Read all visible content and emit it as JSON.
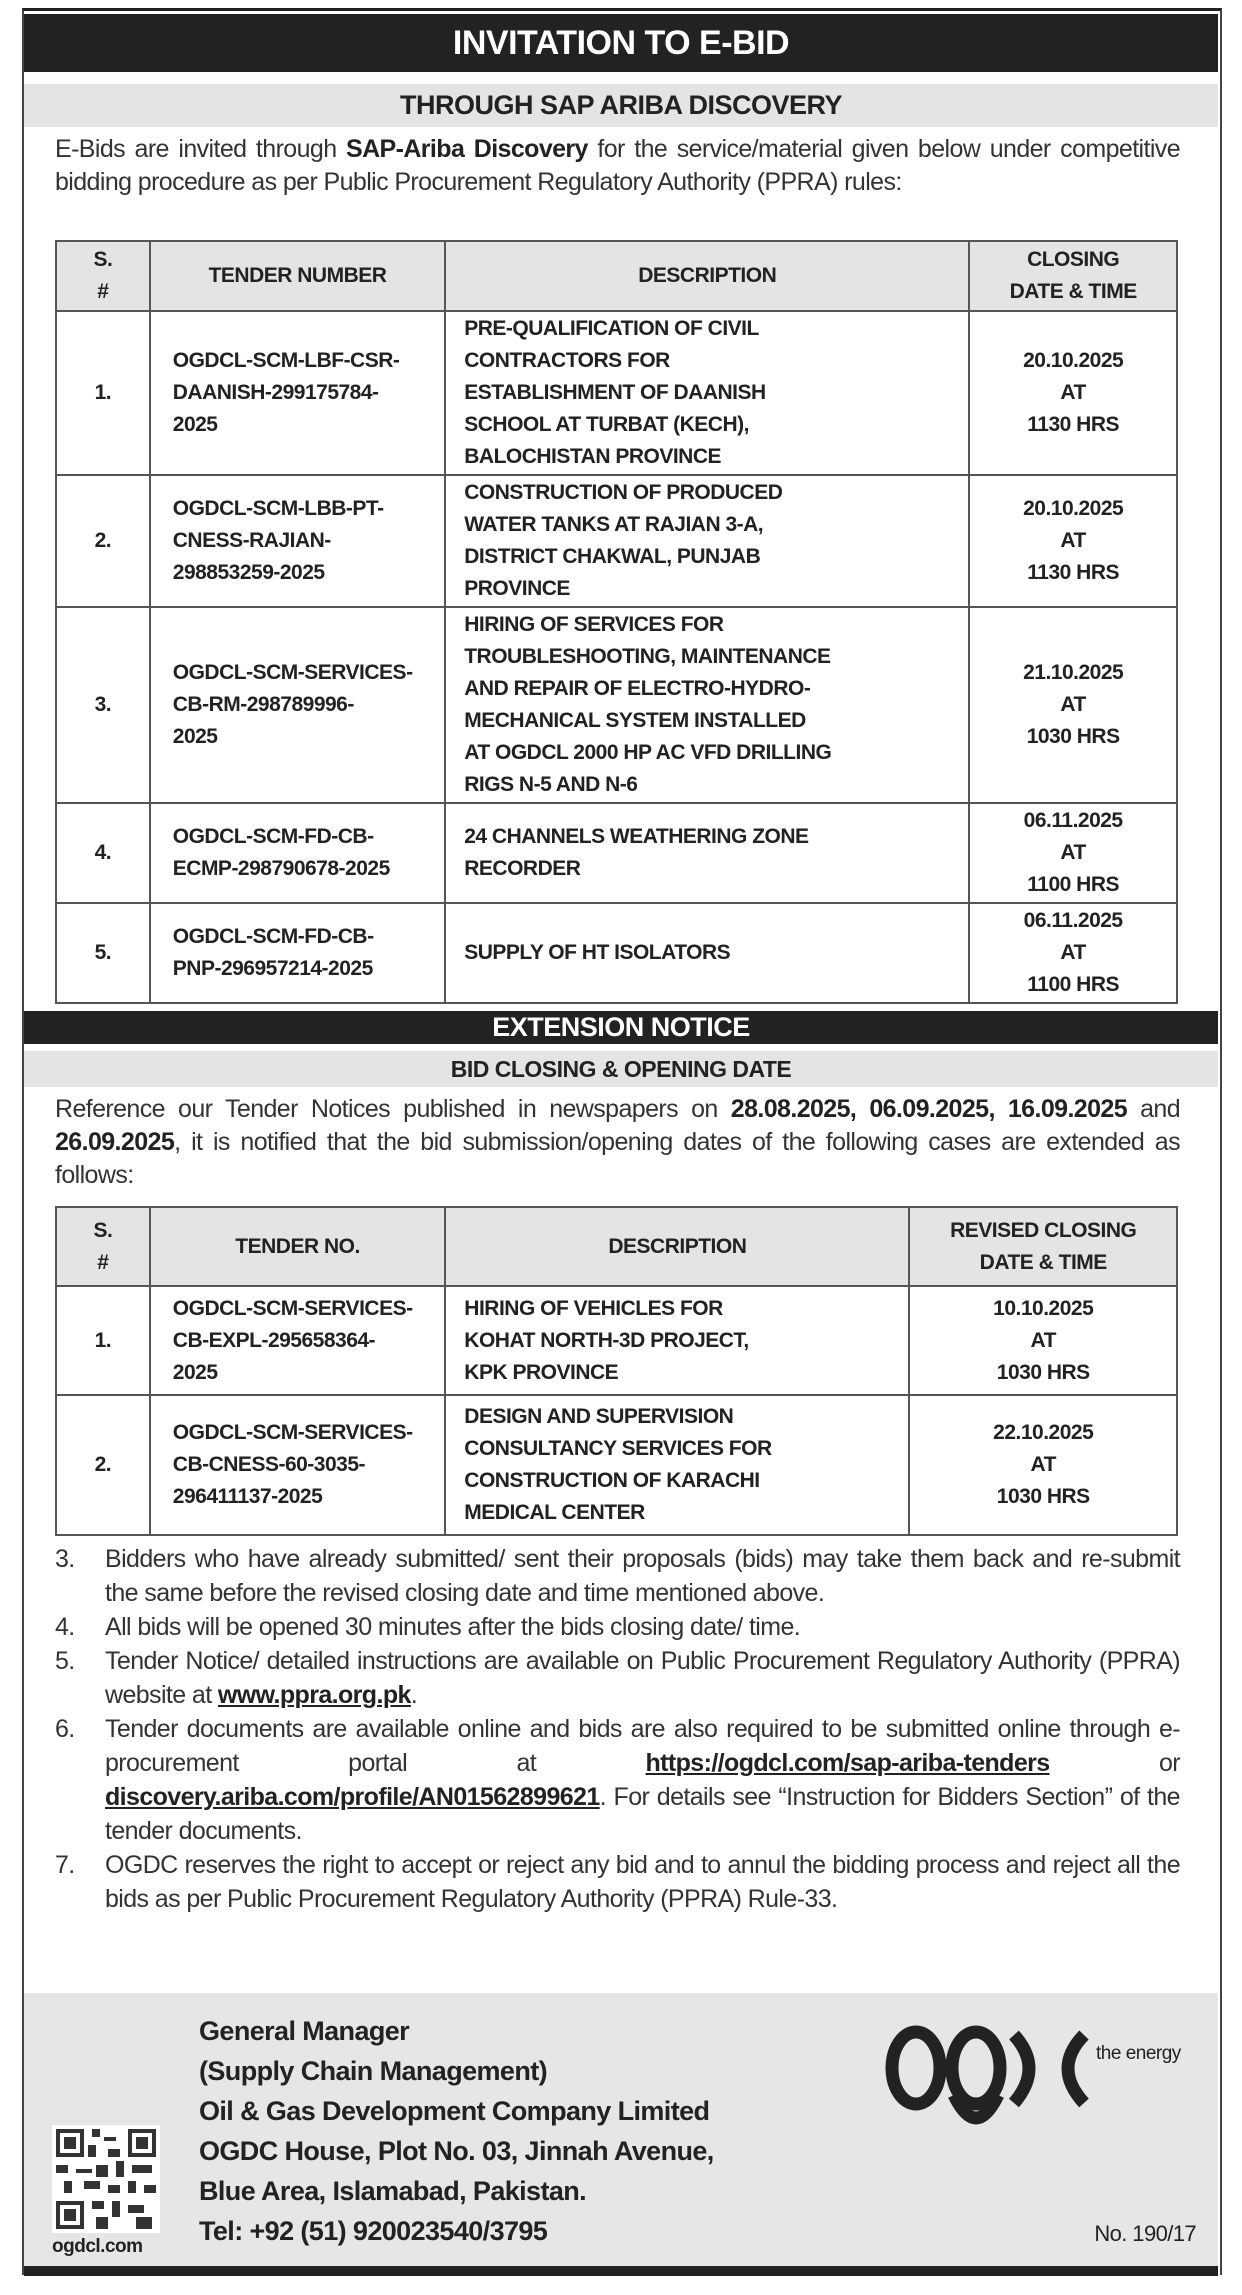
{
  "header": {
    "title": "INVITATION TO E-BID",
    "subtitle": "THROUGH SAP ARIBA DISCOVERY"
  },
  "intro": {
    "before": "E-Bids are invited through ",
    "bold": "SAP-Ariba Discovery",
    "after": " for the service/material given below under competitive bidding procedure as per Public Procurement Regulatory Authority (PPRA) rules:"
  },
  "table1": {
    "headers": [
      "S.\n#",
      "TENDER NUMBER",
      "DESCRIPTION",
      "CLOSING\nDATE & TIME"
    ],
    "rows": [
      {
        "sn": "1.",
        "tender": "OGDCL-SCM-LBF-CSR-\nDAANISH-299175784-\n2025",
        "desc": "PRE-QUALIFICATION OF CIVIL\nCONTRACTORS FOR\nESTABLISHMENT OF DAANISH\nSCHOOL AT TURBAT (KECH),\nBALOCHISTAN PROVINCE",
        "closing": "20.10.2025\nAT\n1130 HRS"
      },
      {
        "sn": "2.",
        "tender": "OGDCL-SCM-LBB-PT-\nCNESS-RAJIAN-\n298853259-2025",
        "desc": "CONSTRUCTION OF PRODUCED\nWATER TANKS AT RAJIAN 3-A,\nDISTRICT CHAKWAL, PUNJAB\nPROVINCE",
        "closing": "20.10.2025\nAT\n1130 HRS"
      },
      {
        "sn": "3.",
        "tender": "OGDCL-SCM-SERVICES-\nCB-RM-298789996-\n2025",
        "desc": "HIRING OF SERVICES FOR\nTROUBLESHOOTING, MAINTENANCE\nAND REPAIR OF ELECTRO-HYDRO-\nMECHANICAL SYSTEM INSTALLED\nAT OGDCL 2000 HP AC VFD DRILLING\nRIGS N-5 AND N-6",
        "closing": "21.10.2025\nAT\n1030 HRS"
      },
      {
        "sn": "4.",
        "tender": "OGDCL-SCM-FD-CB-\nECMP-298790678-2025",
        "desc": "24 CHANNELS WEATHERING ZONE\nRECORDER",
        "closing": "06.11.2025\nAT\n1100 HRS"
      },
      {
        "sn": "5.",
        "tender": "OGDCL-SCM-FD-CB-\nPNP-296957214-2025",
        "desc": "SUPPLY OF  HT ISOLATORS",
        "closing": "06.11.2025\nAT\n1100 HRS"
      }
    ]
  },
  "extension": {
    "title": "EXTENSION NOTICE",
    "subtitle": "BID CLOSING & OPENING DATE",
    "para": {
      "t1": "Reference our Tender Notices published in newspapers on ",
      "d1": "28.08.2025, 06.09.2025, 16.09.2025",
      "t2": " and ",
      "d2": "26.09.2025",
      "t3": ", it is notified that the bid submission/opening dates of the following cases are extended as follows:"
    }
  },
  "table2": {
    "headers": [
      "S.\n#",
      "TENDER NO.",
      "DESCRIPTION",
      "REVISED CLOSING\nDATE & TIME"
    ],
    "rows": [
      {
        "sn": "1.",
        "tender": "OGDCL-SCM-SERVICES-\nCB-EXPL-295658364-\n2025",
        "desc": "HIRING OF VEHICLES FOR\nKOHAT NORTH-3D PROJECT,\nKPK PROVINCE",
        "closing": "10.10.2025\nAT\n1030 HRS"
      },
      {
        "sn": "2.",
        "tender": "OGDCL-SCM-SERVICES-\nCB-CNESS-60-3035-\n296411137-2025",
        "desc": "DESIGN AND SUPERVISION\nCONSULTANCY SERVICES FOR\nCONSTRUCTION OF KARACHI\nMEDICAL CENTER",
        "closing": "22.10.2025\nAT\n1030 HRS"
      }
    ]
  },
  "items": {
    "i3": {
      "num": "3.",
      "text": "Bidders who have already submitted/ sent their proposals (bids) may take them back and re-submit the same before the revised closing date and time mentioned above."
    },
    "i4": {
      "num": "4.",
      "text": "All bids will be opened 30 minutes after the bids closing date/ time."
    },
    "i5": {
      "num": "5.",
      "text": "Tender Notice/ detailed instructions are available on Public Procurement Regulatory Authority (PPRA) website at ",
      "link": "www.ppra.org.pk",
      "after": "."
    },
    "i6": {
      "num": "6.",
      "text": "Tender documents are available online and bids are also required to be submitted online through e-procurement portal at ",
      "link1": "https://ogdcl.com/sap-ariba-tenders",
      "mid": " or ",
      "link2": "discovery.ariba.com/profile/AN01562899621",
      "after": ". For details see “Instruction for Bidders Section” of the tender documents."
    },
    "i7": {
      "num": "7.",
      "text": "OGDC reserves the right to accept or reject any bid and to annul the bidding process and reject all the bids as per Public Procurement Regulatory Authority (PPRA) Rule-33."
    }
  },
  "footer": {
    "lines": [
      "General Manager",
      "(Supply Chain Management)",
      "Oil & Gas Development Company Limited",
      "OGDC House, Plot No. 03, Jinnah Avenue,",
      "Blue Area, Islamabad, Pakistan.",
      "Tel: +92 (51) 920023540/3795"
    ],
    "website": "ogdcl.com",
    "logo_text": "ogdc",
    "logo_tagline": "the energy",
    "ref": "No. 190/17"
  }
}
